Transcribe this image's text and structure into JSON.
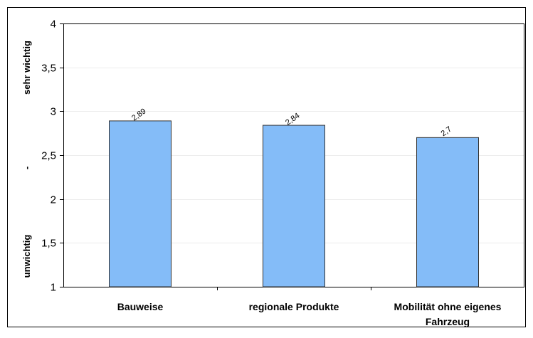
{
  "chart_data": {
    "type": "bar",
    "categories": [
      "Bauweise",
      "regionale Produkte",
      "Mobilität ohne eigenes Fahrzeug"
    ],
    "category_lines": [
      [
        "Bauweise"
      ],
      [
        "regionale Produkte"
      ],
      [
        "Mobilität ohne eigenes",
        "Fahrzeug"
      ]
    ],
    "values": [
      2.89,
      2.84,
      2.7
    ],
    "data_labels": [
      "2,89",
      "2,84",
      "2,7"
    ],
    "ylim": [
      1,
      4
    ],
    "yticks": [
      1,
      1.5,
      2,
      2.5,
      3,
      3.5,
      4
    ],
    "ytick_labels": [
      "1",
      "1,5",
      "2",
      "2,5",
      "3",
      "3,5",
      "4"
    ],
    "y_side_labels": {
      "top": "sehr wichtig",
      "middle": "-",
      "bottom": "unwichtig"
    },
    "grid": true,
    "colors": {
      "bar_fill": "#84bcf8",
      "bar_stroke": "#333333",
      "gridline": "#ececec",
      "frame": "#000000"
    }
  }
}
